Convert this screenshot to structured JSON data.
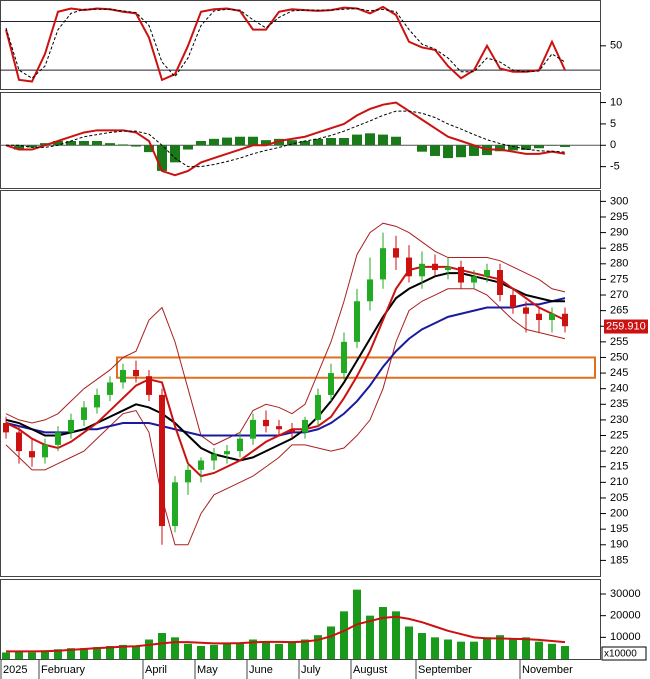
{
  "chart_data": [
    {
      "type": "line",
      "ylim": [
        -2,
        104
      ],
      "yticks": [
        50
      ],
      "levels": [
        20,
        80
      ],
      "series": [
        {
          "color": "#cc1111",
          "style": "solid",
          "values": [
            70,
            8,
            6,
            40,
            92,
            96,
            94,
            96,
            95,
            92,
            90,
            60,
            8,
            15,
            50,
            92,
            95,
            96,
            93,
            70,
            70,
            92,
            95,
            94,
            93,
            94,
            97,
            96,
            90,
            98,
            88,
            55,
            48,
            45,
            25,
            10,
            20,
            50,
            22,
            18,
            18,
            20,
            55,
            20
          ]
        },
        {
          "color": "#000000",
          "style": "dashed",
          "values": [
            72,
            20,
            10,
            25,
            70,
            90,
            95,
            95,
            95,
            93,
            91,
            75,
            30,
            12,
            35,
            75,
            93,
            95,
            94,
            82,
            72,
            85,
            93,
            94,
            94,
            94,
            95,
            96,
            93,
            95,
            92,
            70,
            52,
            46,
            35,
            18,
            18,
            35,
            30,
            20,
            18,
            19,
            40,
            30
          ]
        }
      ]
    },
    {
      "type": "macd",
      "ylim": [
        -10,
        12
      ],
      "yticks": [
        10,
        5,
        0,
        -5
      ],
      "levels": [
        0
      ],
      "histogram": {
        "color": "#1a7a1a",
        "values": [
          0,
          -1,
          -0.5,
          0.5,
          1,
          1,
          1,
          1,
          0.5,
          0.2,
          -0.3,
          -1.6,
          -6,
          -4,
          -1,
          1,
          1.5,
          1.8,
          2,
          2,
          1.2,
          1.5,
          1.2,
          1,
          1.5,
          1.7,
          1.7,
          2.5,
          2.8,
          2.5,
          2,
          0,
          -1.5,
          -2.5,
          -3,
          -2.8,
          -2.5,
          -2.3,
          -1.4,
          -1.2,
          -1.1,
          -0.7,
          -0.1,
          -0.4
        ]
      },
      "series": [
        {
          "color": "#cc1111",
          "style": "solid",
          "values": [
            0,
            -1,
            -1,
            0,
            1,
            2,
            3,
            3.5,
            3.5,
            3.5,
            3,
            1,
            -6,
            -7,
            -6,
            -4,
            -3,
            -2,
            -1,
            0,
            0,
            1,
            1.5,
            2,
            3,
            4,
            5,
            7,
            8.5,
            9.5,
            10,
            8,
            6,
            4,
            2,
            1,
            0,
            -1,
            -1,
            -1.5,
            -2,
            -2,
            -1.5,
            -2
          ]
        },
        {
          "color": "#000000",
          "style": "dashed",
          "values": [
            0,
            0,
            -0.5,
            -0.5,
            0,
            1,
            2,
            2.5,
            3,
            3.3,
            3.3,
            2.6,
            0,
            -3,
            -5,
            -5,
            -4.5,
            -3.8,
            -3,
            -2,
            -1.2,
            -0.5,
            0.3,
            1,
            1.5,
            2.3,
            3.3,
            4.5,
            5.7,
            7,
            8,
            8,
            7.5,
            6.5,
            5,
            3.8,
            2.5,
            1.3,
            0.4,
            -0.3,
            -0.9,
            -1.3,
            -1.4,
            -1.6
          ]
        }
      ]
    },
    {
      "type": "candlestick",
      "ylim": [
        180,
        303
      ],
      "yticks": [
        185,
        190,
        195,
        200,
        205,
        210,
        215,
        220,
        225,
        230,
        235,
        240,
        245,
        250,
        255,
        260,
        265,
        270,
        275,
        280,
        285,
        290,
        295,
        300
      ],
      "up_color": "#22aa22",
      "down_color": "#cc1111",
      "open": [
        229,
        226,
        220,
        218,
        222,
        226,
        230,
        234,
        238,
        242,
        246,
        244,
        238,
        196,
        210,
        214,
        217,
        219,
        220,
        224,
        230,
        228,
        227,
        226,
        230,
        238,
        245,
        255,
        268,
        275,
        285,
        282,
        276,
        280,
        278,
        279,
        274,
        276,
        278,
        270,
        266,
        264,
        262,
        264
      ],
      "high": [
        231,
        228,
        224,
        224,
        228,
        232,
        236,
        240,
        244,
        248,
        249,
        246,
        240,
        212,
        216,
        218,
        221,
        222,
        226,
        232,
        233,
        230,
        229,
        231,
        240,
        248,
        258,
        272,
        282,
        290,
        289,
        286,
        284,
        283,
        282,
        281,
        278,
        280,
        280,
        272,
        268,
        266,
        266,
        266
      ],
      "low": [
        224,
        216,
        215,
        216,
        220,
        224,
        228,
        232,
        236,
        240,
        242,
        236,
        190,
        194,
        206,
        210,
        214,
        216,
        218,
        222,
        226,
        225,
        224,
        224,
        228,
        236,
        243,
        253,
        265,
        272,
        278,
        274,
        272,
        276,
        275,
        272,
        272,
        274,
        268,
        264,
        258,
        258,
        258,
        258
      ],
      "close": [
        226,
        220,
        218,
        222,
        226,
        230,
        234,
        238,
        242,
        246,
        244,
        238,
        196,
        210,
        214,
        217,
        219,
        220,
        224,
        230,
        228,
        227,
        226,
        230,
        238,
        245,
        255,
        268,
        275,
        285,
        282,
        276,
        280,
        278,
        279,
        274,
        276,
        278,
        270,
        266,
        264,
        262,
        264,
        260
      ],
      "series": [
        {
          "color": "#aa2020",
          "width": 1,
          "values": [
            232,
            230,
            229,
            230,
            232,
            236,
            240,
            243,
            246,
            250,
            252,
            262,
            266,
            255,
            240,
            225,
            222,
            224,
            226,
            233,
            235,
            234,
            232,
            235,
            245,
            255,
            268,
            283,
            290,
            293,
            292,
            290,
            287,
            284,
            282,
            282,
            282,
            282,
            281,
            279,
            277,
            275,
            272,
            271
          ]
        },
        {
          "color": "#aa2020",
          "width": 1,
          "values": [
            222,
            218,
            214,
            214,
            216,
            218,
            220,
            224,
            228,
            232,
            233,
            226,
            205,
            190,
            190,
            200,
            206,
            208,
            210,
            212,
            215,
            218,
            222,
            222,
            221,
            220,
            221,
            225,
            230,
            240,
            255,
            265,
            268,
            270,
            272,
            272,
            272,
            270,
            266,
            262,
            259,
            258,
            257,
            256
          ]
        },
        {
          "color": "#1a1aa0",
          "width": 2,
          "values": [
            229,
            228,
            227,
            226,
            226,
            226,
            227,
            227,
            228,
            229,
            229,
            229,
            228,
            227,
            226,
            225,
            225,
            225,
            225,
            225,
            225,
            225,
            226,
            226,
            227,
            229,
            232,
            236,
            241,
            247,
            252,
            256,
            259,
            261,
            263,
            264,
            265,
            266,
            266,
            266,
            267,
            267,
            268,
            269
          ]
        },
        {
          "color": "#000000",
          "width": 2,
          "values": [
            230,
            229,
            227,
            225,
            225,
            226,
            227,
            229,
            231,
            233,
            235,
            234,
            232,
            229,
            225,
            221,
            219,
            218,
            217,
            218,
            220,
            222,
            224,
            227,
            231,
            236,
            242,
            249,
            256,
            263,
            269,
            272,
            274,
            276,
            277,
            277,
            276,
            275,
            274,
            272,
            270,
            269,
            268,
            268
          ]
        },
        {
          "color": "#cc1111",
          "width": 2,
          "values": [
            229,
            227,
            224,
            222,
            221,
            223,
            226,
            229,
            233,
            237,
            241,
            243,
            242,
            228,
            216,
            212,
            213,
            215,
            217,
            220,
            223,
            225,
            227,
            227,
            228,
            231,
            237,
            244,
            252,
            262,
            272,
            278,
            279,
            279,
            279,
            278,
            277,
            276,
            275,
            272,
            269,
            266,
            264,
            262
          ]
        }
      ],
      "zone": {
        "low": 243.5,
        "high": 250,
        "color": "#e07020"
      },
      "last_price": 259.91,
      "last_price_label": "259.910"
    },
    {
      "type": "bar",
      "ylim": [
        0,
        36000
      ],
      "yticks": [
        10000,
        20000,
        30000
      ],
      "unit_label": "x10000",
      "color": "#1a9a1a",
      "categories": [
        "2025",
        null,
        null,
        "February",
        null,
        null,
        null,
        null,
        null,
        null,
        null,
        "April",
        null,
        null,
        null,
        "May",
        null,
        null,
        null,
        "June",
        null,
        null,
        null,
        "July",
        null,
        null,
        null,
        "August",
        null,
        null,
        null,
        null,
        "September",
        null,
        null,
        null,
        null,
        null,
        null,
        null,
        "November",
        null,
        null,
        null
      ],
      "values": [
        3000,
        3500,
        3000,
        4000,
        4500,
        5000,
        5000,
        5500,
        6000,
        6500,
        6000,
        9000,
        12000,
        10000,
        7000,
        6000,
        6500,
        7000,
        7500,
        9000,
        8000,
        7000,
        7500,
        9000,
        11000,
        15000,
        22000,
        32000,
        20000,
        24000,
        22000,
        15000,
        12000,
        10000,
        9000,
        8000,
        8000,
        10000,
        11000,
        9000,
        10000,
        8000,
        7000,
        6000
      ],
      "series": [
        {
          "color": "#cc1111",
          "width": 2,
          "values": [
            3500,
            3500,
            3500,
            3600,
            3800,
            4200,
            4600,
            5000,
            5300,
            5700,
            5900,
            6500,
            7200,
            7800,
            7800,
            7500,
            7200,
            7200,
            7300,
            7700,
            7900,
            7900,
            7800,
            8000,
            8800,
            10500,
            13000,
            16000,
            17500,
            19000,
            19500,
            18500,
            17000,
            15000,
            13000,
            11500,
            10000,
            9500,
            9500,
            9300,
            9200,
            8800,
            8300,
            7800
          ]
        }
      ]
    }
  ]
}
